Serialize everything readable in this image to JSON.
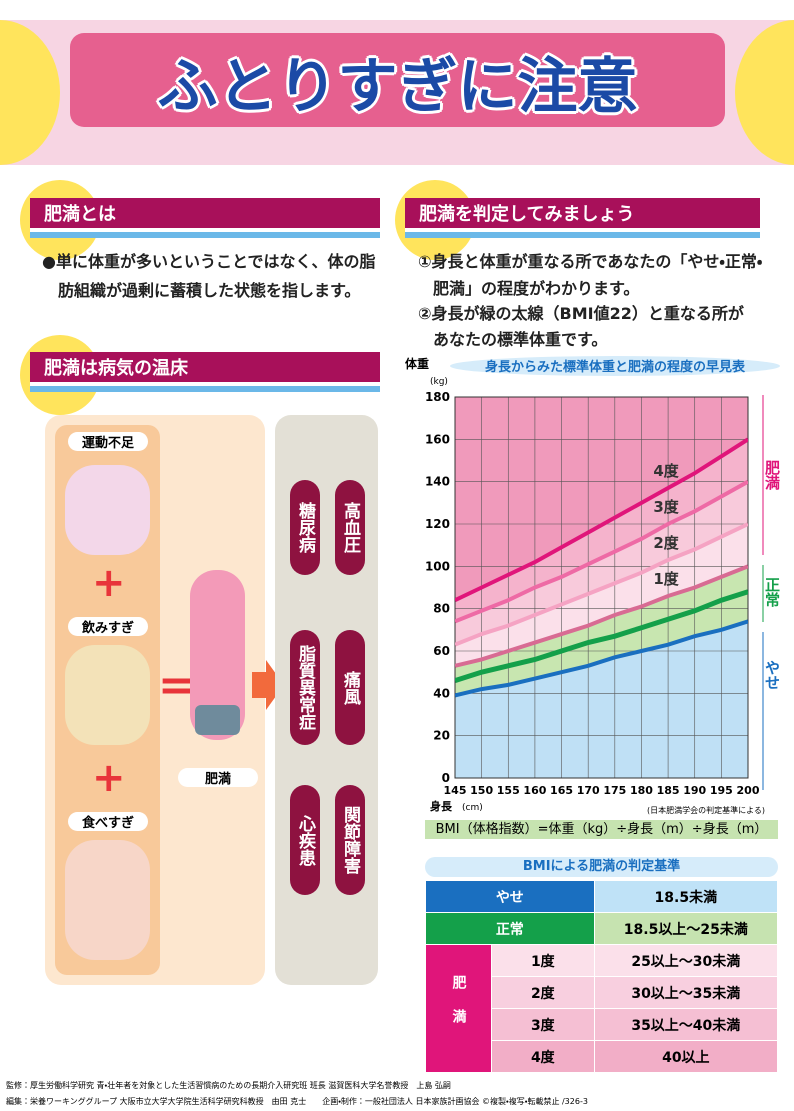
{
  "header": {
    "title": "ふとりすぎに注意"
  },
  "section1": {
    "heading": "肥満とは",
    "text": [
      "●単に体重が多いということではなく、体の脂",
      "肪組織が過剰に蓄積した状態を指します。"
    ]
  },
  "section2": {
    "heading": "肥満は病気の温床",
    "causes": [
      "運動不足",
      "飲みすぎ",
      "食べすぎ"
    ],
    "result": "肥満",
    "diseases": [
      "高血圧",
      "糖尿病",
      "痛風",
      "脂質異常症",
      "関節障害",
      "心疾患"
    ]
  },
  "section3": {
    "heading": "肥満を判定してみましょう",
    "text": [
      "①身長と体重が重なる所であなたの「やせ・正常・",
      "肥満」の程度がわかります。",
      "②身長が緑の太線（BMI値22）と重なる所が",
      "あなたの標準体重です。"
    ]
  },
  "chart_data": {
    "type": "line",
    "title": "身長からみた標準体重と肥満の程度の早見表",
    "ylabel": "体重",
    "yunit": "(kg)",
    "xlabel": "身長",
    "xunit": "(cm)",
    "note": "(日本肥満学会の判定基準による)",
    "formula": "BMI（体格指数）=体重（kg）÷身長（m）÷身長（m）",
    "x": [
      145,
      150,
      155,
      160,
      165,
      170,
      175,
      180,
      185,
      190,
      195,
      200
    ],
    "series": [
      {
        "color": "#1a6fc0",
        "values": [
          39,
          42,
          44,
          47,
          50,
          53,
          57,
          60,
          63,
          67,
          70,
          74
        ]
      },
      {
        "color": "#14a04a",
        "values": [
          46,
          50,
          53,
          56,
          60,
          64,
          67,
          71,
          75,
          79,
          84,
          88
        ]
      },
      {
        "color": "#d86b93",
        "values": [
          53,
          56,
          60,
          64,
          68,
          72,
          77,
          81,
          86,
          90,
          95,
          100
        ]
      },
      {
        "color": "#f5a3c3",
        "values": [
          63,
          68,
          72,
          77,
          82,
          87,
          92,
          97,
          103,
          108,
          114,
          120
        ]
      },
      {
        "color": "#ee6aa5",
        "values": [
          74,
          79,
          84,
          90,
          95,
          101,
          107,
          113,
          120,
          126,
          133,
          140
        ]
      },
      {
        "color": "#e0157a",
        "values": [
          84,
          90,
          96,
          102,
          109,
          116,
          123,
          130,
          137,
          144,
          152,
          160
        ]
      }
    ],
    "grade_labels": [
      "1度",
      "2度",
      "3度",
      "4度"
    ],
    "zones": [
      "肥満",
      "正常",
      "やせ"
    ],
    "xlim": [
      145,
      200
    ],
    "xticks": [
      145,
      150,
      155,
      160,
      165,
      170,
      175,
      180,
      185,
      190,
      195,
      200
    ],
    "ylim": [
      0,
      180
    ],
    "yticks": [
      0,
      20,
      40,
      60,
      80,
      100,
      120,
      140,
      160,
      180
    ],
    "grid": true
  },
  "table": {
    "title": "BMIによる肥満の判定基準",
    "rows": [
      {
        "label": "やせ",
        "range": "18.5未満"
      },
      {
        "label": "正常",
        "range": "18.5以上～25未満"
      }
    ],
    "obese": {
      "label": "肥満",
      "grades": [
        {
          "grade": "1度",
          "range": "25以上～30未満"
        },
        {
          "grade": "2度",
          "range": "30以上～35未満"
        },
        {
          "grade": "3度",
          "range": "35以上～40未満"
        },
        {
          "grade": "4度",
          "range": "40以上"
        }
      ]
    }
  },
  "footer": [
    "監修：厚生労働科学研究 青・壮年者を対象とした生活習慣病のための長期介入研究班 班長 滋賀医科大学名誉教授　上島 弘嗣",
    "編集：栄養ワーキンググループ 大阪市立大学大学院生活科学研究科教授　由田 克士　　企画・制作：一般社団法人 日本家族計画協会 ©複製・複写・転載禁止 /326-3"
  ]
}
